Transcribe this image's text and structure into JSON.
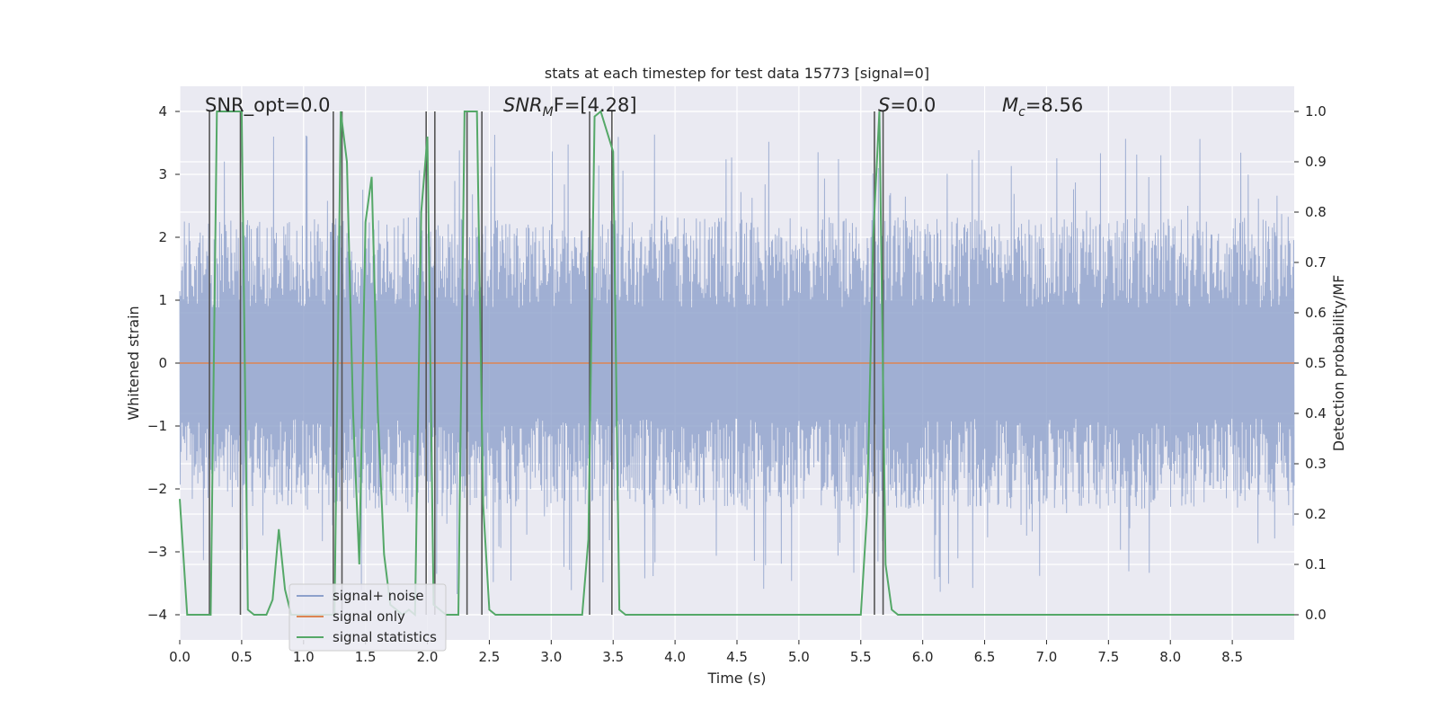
{
  "chart_data": {
    "type": "line",
    "title": "stats at each timestep for test data 15773 [signal=0]",
    "xlabel": "Time (s)",
    "ylabel": "Whitened strain",
    "y2label": "Detection probability/MF",
    "xlim": [
      0.0,
      9.0
    ],
    "ylim": [
      -4.4,
      4.4
    ],
    "y2lim": [
      -0.05,
      1.05
    ],
    "xticks": [
      "0.0",
      "0.5",
      "1.0",
      "1.5",
      "2.0",
      "2.5",
      "3.0",
      "3.5",
      "4.0",
      "4.5",
      "5.0",
      "5.5",
      "6.0",
      "6.5",
      "7.0",
      "7.5",
      "8.0",
      "8.5"
    ],
    "xtick_values": [
      0.0,
      0.5,
      1.0,
      1.5,
      2.0,
      2.5,
      3.0,
      3.5,
      4.0,
      4.5,
      5.0,
      5.5,
      6.0,
      6.5,
      7.0,
      7.5,
      8.0,
      8.5
    ],
    "yticks": [
      "−4",
      "−3",
      "−2",
      "−1",
      "0",
      "1",
      "2",
      "3",
      "4"
    ],
    "ytick_values": [
      -4,
      -3,
      -2,
      -1,
      0,
      1,
      2,
      3,
      4
    ],
    "y2ticks": [
      "0.0",
      "0.1",
      "0.2",
      "0.3",
      "0.4",
      "0.5",
      "0.6",
      "0.7",
      "0.8",
      "0.9",
      "1.0"
    ],
    "y2tick_values": [
      0.0,
      0.1,
      0.2,
      0.3,
      0.4,
      0.5,
      0.6,
      0.7,
      0.8,
      0.9,
      1.0
    ],
    "annotations": {
      "snr_opt": "SNR_opt=0.0",
      "snr_mf_base": "SNR",
      "snr_mf_sub": "M",
      "snr_mf_rest": "F=[4.28]",
      "s_label": "S",
      "s_value": "=0.0",
      "mc_base": "M",
      "mc_sub": "c",
      "mc_value": "=8.56"
    },
    "legend": {
      "placement": "lower-left",
      "entries": [
        "signal+ noise",
        "signal only",
        "signal statistics"
      ]
    },
    "series": [
      {
        "name": "signal+ noise",
        "axis": "left",
        "kind": "noise",
        "color": "#8da0cb",
        "typical_amplitude": 1.6,
        "peak_amplitude": 3.7,
        "time_range": [
          0.0,
          9.0
        ]
      },
      {
        "name": "signal only",
        "axis": "left",
        "kind": "flat",
        "color": "#dd8452",
        "value": 0.0,
        "time_range": [
          0.0,
          9.0
        ]
      },
      {
        "name": "signal statistics",
        "axis": "right",
        "kind": "line",
        "color": "#55a868",
        "x": [
          0.0,
          0.06,
          0.1,
          0.2,
          0.25,
          0.3,
          0.35,
          0.4,
          0.45,
          0.5,
          0.55,
          0.6,
          0.65,
          0.7,
          0.75,
          0.8,
          0.85,
          0.9,
          0.95,
          1.0,
          1.1,
          1.2,
          1.25,
          1.3,
          1.35,
          1.4,
          1.45,
          1.5,
          1.55,
          1.6,
          1.65,
          1.7,
          1.75,
          1.8,
          1.85,
          1.9,
          1.95,
          2.0,
          2.05,
          2.1,
          2.15,
          2.2,
          2.25,
          2.3,
          2.35,
          2.4,
          2.45,
          2.5,
          2.55,
          2.6,
          2.7,
          3.0,
          3.25,
          3.3,
          3.35,
          3.4,
          3.45,
          3.5,
          3.55,
          3.6,
          3.7,
          4.0,
          4.5,
          4.8,
          5.0,
          5.5,
          5.55,
          5.6,
          5.65,
          5.7,
          5.75,
          5.8,
          6.0,
          6.5,
          7.0,
          8.0,
          9.0
        ],
        "values": [
          0.23,
          0.0,
          0.0,
          0.0,
          0.0,
          1.0,
          1.0,
          1.0,
          1.0,
          1.0,
          0.01,
          0.0,
          0.0,
          0.0,
          0.03,
          0.17,
          0.05,
          0.0,
          0.0,
          0.0,
          0.0,
          0.0,
          0.0,
          1.0,
          0.9,
          0.4,
          0.1,
          0.78,
          0.87,
          0.4,
          0.12,
          0.02,
          0.01,
          0.0,
          0.01,
          0.0,
          0.8,
          0.95,
          0.02,
          0.01,
          0.0,
          0.0,
          0.0,
          1.0,
          1.0,
          1.0,
          0.22,
          0.01,
          0.0,
          0.0,
          0.0,
          0.0,
          0.0,
          0.15,
          0.99,
          1.0,
          0.96,
          0.92,
          0.01,
          0.0,
          0.0,
          0.0,
          0.0,
          0.0,
          0.0,
          0.0,
          0.2,
          0.75,
          1.0,
          0.1,
          0.01,
          0.0,
          0.0,
          0.0,
          0.0,
          0.0,
          0.0
        ]
      }
    ],
    "vertical_markers": [
      0.24,
      0.49,
      1.24,
      1.31,
      1.99,
      2.06,
      2.32,
      2.44,
      3.31,
      3.49,
      5.61,
      5.68
    ]
  },
  "colors": {
    "plot_bg": "#eaeaf2",
    "grid": "#ffffff",
    "marker_line": "#555555",
    "text": "#262626"
  }
}
